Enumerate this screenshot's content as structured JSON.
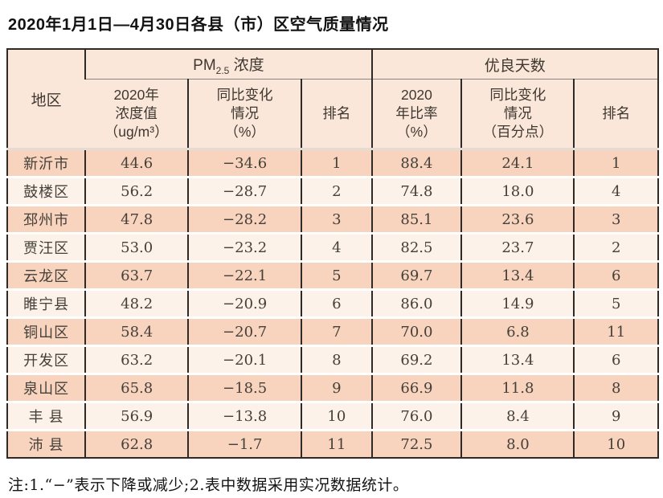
{
  "page": {
    "title": "2020年1月1日—4月30日各县（市）区空气质量情况",
    "note": "注:1.“−”表示下降或减少;2.表中数据采用实况数据统计。"
  },
  "colors": {
    "border_dark": "#2f2a26",
    "header_bg": "#fbe7d9",
    "row_odd_bg": "#f8d3bd",
    "row_even_bg": "#fdf2ea",
    "text_dark": "#45403a"
  },
  "table": {
    "header": {
      "region": "地区",
      "pm25_group": {
        "prefix": "PM",
        "sub": "2.5",
        "suffix": " 浓度"
      },
      "good_group": "优良天数",
      "pm25_value": "2020年\n浓度值\n（ug/m³）",
      "pm25_change": "同比变化\n情况\n（%）",
      "pm25_rank": "排名",
      "good_rate": "2020\n年比率\n（%）",
      "good_change": "同比变化\n情况\n（百分点）",
      "good_rank": "排名"
    },
    "row_keys": [
      "region",
      "pm25_value",
      "pm25_change",
      "pm25_rank",
      "good_rate",
      "good_change",
      "good_rank"
    ],
    "rows": [
      {
        "region": "新沂市",
        "pm25_value": "44.6",
        "pm25_change": "−34.6",
        "pm25_rank": "1",
        "good_rate": "88.4",
        "good_change": "24.1",
        "good_rank": "1"
      },
      {
        "region": "鼓楼区",
        "pm25_value": "56.2",
        "pm25_change": "−28.7",
        "pm25_rank": "2",
        "good_rate": "74.8",
        "good_change": "18.0",
        "good_rank": "4"
      },
      {
        "region": "邳州市",
        "pm25_value": "47.8",
        "pm25_change": "−28.2",
        "pm25_rank": "3",
        "good_rate": "85.1",
        "good_change": "23.6",
        "good_rank": "3"
      },
      {
        "region": "贾汪区",
        "pm25_value": "53.0",
        "pm25_change": "−23.2",
        "pm25_rank": "4",
        "good_rate": "82.5",
        "good_change": "23.7",
        "good_rank": "2"
      },
      {
        "region": "云龙区",
        "pm25_value": "63.7",
        "pm25_change": "−22.1",
        "pm25_rank": "5",
        "good_rate": "69.7",
        "good_change": "13.4",
        "good_rank": "6"
      },
      {
        "region": "睢宁县",
        "pm25_value": "48.2",
        "pm25_change": "−20.9",
        "pm25_rank": "6",
        "good_rate": "86.0",
        "good_change": "14.9",
        "good_rank": "5"
      },
      {
        "region": "铜山区",
        "pm25_value": "58.4",
        "pm25_change": "−20.7",
        "pm25_rank": "7",
        "good_rate": "70.0",
        "good_change": "6.8",
        "good_rank": "11"
      },
      {
        "region": "开发区",
        "pm25_value": "63.2",
        "pm25_change": "−20.1",
        "pm25_rank": "8",
        "good_rate": "69.2",
        "good_change": "13.4",
        "good_rank": "6"
      },
      {
        "region": "泉山区",
        "pm25_value": "65.8",
        "pm25_change": "−18.5",
        "pm25_rank": "9",
        "good_rate": "66.9",
        "good_change": "11.8",
        "good_rank": "8"
      },
      {
        "region": "丰 县",
        "pm25_value": "56.9",
        "pm25_change": "−13.8",
        "pm25_rank": "10",
        "good_rate": "76.0",
        "good_change": "8.4",
        "good_rank": "9"
      },
      {
        "region": "沛 县",
        "pm25_value": "62.8",
        "pm25_change": "−1.7",
        "pm25_rank": "11",
        "good_rate": "72.5",
        "good_change": "8.0",
        "good_rank": "10"
      }
    ]
  }
}
